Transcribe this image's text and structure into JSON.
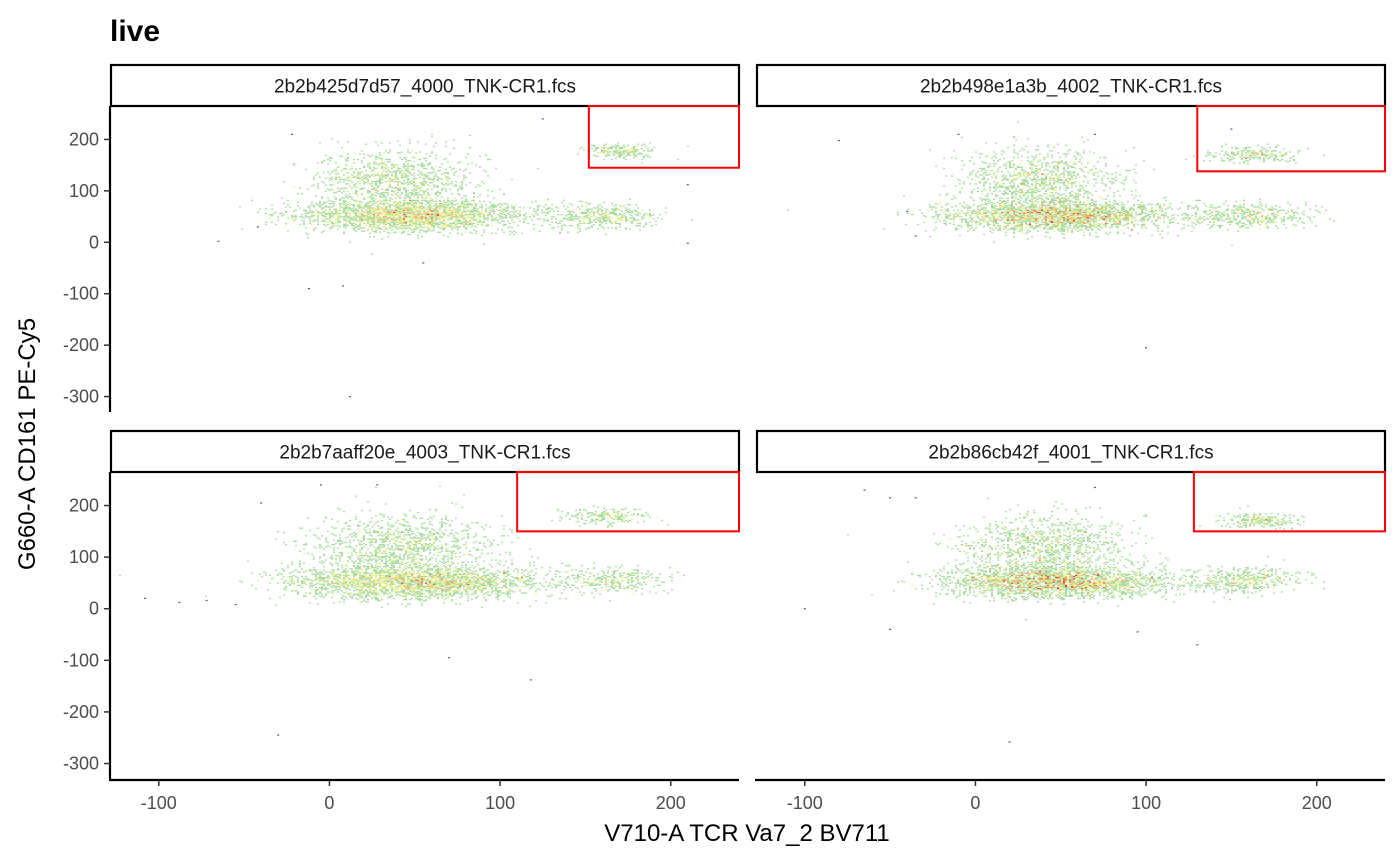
{
  "chart_data": {
    "type": "scatter",
    "plot_kind": "hexbin density scatter, 2x2 facets",
    "title": "live",
    "xlabel": "V710-A TCR Va7_2 BV711",
    "ylabel": "G660-A CD161 PE-Cy5",
    "xlim": [
      -128,
      240
    ],
    "ylim": [
      -330,
      265
    ],
    "x_ticks": [
      -100,
      0,
      100,
      200
    ],
    "x_tick_labels": [
      "-100",
      "0",
      "100",
      "200"
    ],
    "y_ticks": [
      200,
      100,
      0,
      -100,
      -200,
      -300
    ],
    "y_tick_labels": [
      "200",
      "100",
      "0",
      "-100",
      "-200",
      "-300"
    ],
    "grid": false,
    "density_palette": [
      "#5e4fa2",
      "#3288bd",
      "#66c2a5",
      "#abdda4",
      "#e6f598",
      "#fee08b",
      "#fdae61",
      "#f46d43",
      "#d53e4f"
    ],
    "gate_color": "#ff0000",
    "facets": [
      {
        "label": "2b2b425d7d57_4000_TNK-CR1.fcs",
        "gate": {
          "x": [
            152,
            240
          ],
          "y": [
            145,
            265
          ]
        },
        "populations": [
          {
            "cx": 48,
            "cy": 52,
            "sx": 32,
            "sy": 15,
            "n": 2600
          },
          {
            "cx": 38,
            "cy": 120,
            "sx": 22,
            "sy": 30,
            "n": 1100
          },
          {
            "cx": 160,
            "cy": 50,
            "sx": 16,
            "sy": 12,
            "n": 420
          },
          {
            "cx": 172,
            "cy": 177,
            "sx": 10,
            "sy": 7,
            "n": 200
          }
        ],
        "outliers": [
          [
            -65,
            2
          ],
          [
            -42,
            30
          ],
          [
            -22,
            210
          ],
          [
            -12,
            -90
          ],
          [
            8,
            -85
          ],
          [
            12,
            -300
          ],
          [
            55,
            -40
          ],
          [
            125,
            240
          ],
          [
            210,
            112
          ],
          [
            210,
            -2
          ]
        ]
      },
      {
        "label": "2b2b498e1a3b_4002_TNK-CR1.fcs",
        "gate": {
          "x": [
            130,
            240
          ],
          "y": [
            138,
            265
          ]
        },
        "populations": [
          {
            "cx": 48,
            "cy": 52,
            "sx": 33,
            "sy": 15,
            "n": 2500
          },
          {
            "cx": 38,
            "cy": 120,
            "sx": 22,
            "sy": 30,
            "n": 1050
          },
          {
            "cx": 160,
            "cy": 52,
            "sx": 17,
            "sy": 12,
            "n": 450
          },
          {
            "cx": 163,
            "cy": 170,
            "sx": 13,
            "sy": 8,
            "n": 220
          }
        ],
        "outliers": [
          [
            -80,
            198
          ],
          [
            -40,
            60
          ],
          [
            -35,
            12
          ],
          [
            -10,
            210
          ],
          [
            70,
            210
          ],
          [
            150,
            220
          ],
          [
            100,
            -205
          ]
        ]
      },
      {
        "label": "2b2b7aaff20e_4003_TNK-CR1.fcs",
        "gate": {
          "x": [
            110,
            240
          ],
          "y": [
            150,
            265
          ]
        },
        "populations": [
          {
            "cx": 50,
            "cy": 52,
            "sx": 36,
            "sy": 16,
            "n": 2800
          },
          {
            "cx": 42,
            "cy": 122,
            "sx": 26,
            "sy": 30,
            "n": 1150
          },
          {
            "cx": 165,
            "cy": 55,
            "sx": 14,
            "sy": 12,
            "n": 320
          },
          {
            "cx": 163,
            "cy": 178,
            "sx": 13,
            "sy": 8,
            "n": 200
          }
        ],
        "outliers": [
          [
            -108,
            20
          ],
          [
            -88,
            12
          ],
          [
            -72,
            16
          ],
          [
            -55,
            8
          ],
          [
            -40,
            205
          ],
          [
            -30,
            -245
          ],
          [
            -5,
            240
          ],
          [
            28,
            240
          ],
          [
            70,
            -95
          ],
          [
            118,
            -138
          ]
        ]
      },
      {
        "label": "2b2b86cb42f_4001_TNK-CR1.fcs",
        "gate": {
          "x": [
            128,
            240
          ],
          "y": [
            150,
            265
          ]
        },
        "populations": [
          {
            "cx": 48,
            "cy": 52,
            "sx": 32,
            "sy": 15,
            "n": 2600
          },
          {
            "cx": 40,
            "cy": 120,
            "sx": 24,
            "sy": 30,
            "n": 1100
          },
          {
            "cx": 158,
            "cy": 55,
            "sx": 16,
            "sy": 12,
            "n": 420
          },
          {
            "cx": 166,
            "cy": 172,
            "sx": 11,
            "sy": 7,
            "n": 220
          }
        ],
        "outliers": [
          [
            -100,
            0
          ],
          [
            -65,
            230
          ],
          [
            -50,
            215
          ],
          [
            -35,
            215
          ],
          [
            -50,
            -40
          ],
          [
            20,
            -258
          ],
          [
            70,
            235
          ],
          [
            130,
            -70
          ],
          [
            95,
            -45
          ]
        ]
      }
    ]
  }
}
